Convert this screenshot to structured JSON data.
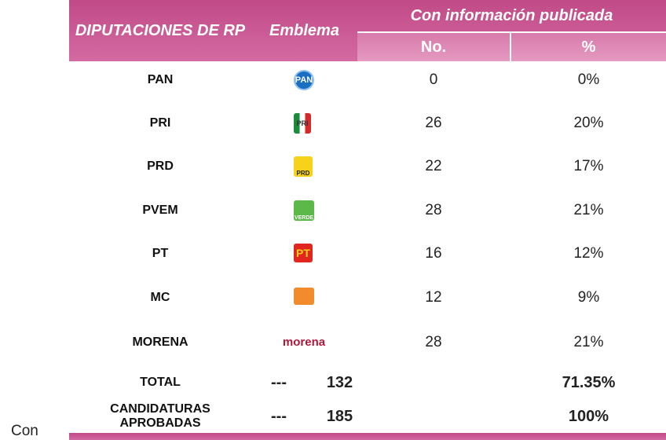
{
  "header": {
    "party": "DIPUTACIONES DE RP",
    "emblem": "Emblema",
    "group": "Con información publicada",
    "no": "No.",
    "pct": "%"
  },
  "rows": [
    {
      "party": "PAN",
      "emblem": "PAN",
      "no": 0,
      "pct": "0%"
    },
    {
      "party": "PRI",
      "emblem": "PRI",
      "no": 26,
      "pct": "20%"
    },
    {
      "party": "PRD",
      "emblem": "PRD",
      "no": 22,
      "pct": "17%"
    },
    {
      "party": "PVEM",
      "emblem": "VERDE",
      "no": 28,
      "pct": "21%"
    },
    {
      "party": "PT",
      "emblem": "PT",
      "no": 16,
      "pct": "12%"
    },
    {
      "party": "MC",
      "no": 12,
      "pct": "9%"
    },
    {
      "party": "MORENA",
      "emblem": "morena",
      "no": 28,
      "pct": "21%"
    }
  ],
  "totals": [
    {
      "label": "TOTAL",
      "dash": "---",
      "no": 132,
      "pct": "71.35%"
    },
    {
      "label": "CANDIDATURAS APROBADAS",
      "dash": "---",
      "no": 185,
      "pct": "100%"
    }
  ],
  "footer": "Con"
}
